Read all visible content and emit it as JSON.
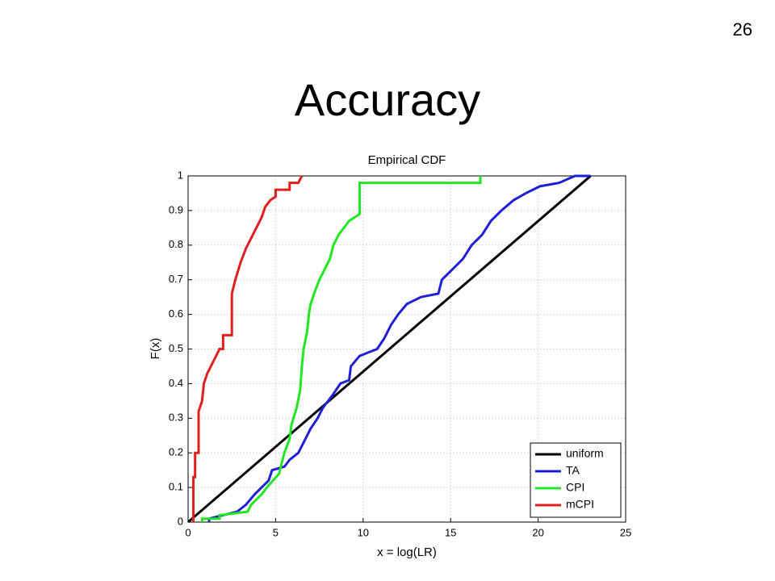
{
  "slide_number": "26",
  "slide_title": "Accuracy",
  "chart_data": {
    "type": "line",
    "title": "Empirical CDF",
    "x_label": "x = log(LR)",
    "y_label": "F(x)",
    "xlim": [
      0,
      25
    ],
    "ylim": [
      0,
      1
    ],
    "xticks": [
      0,
      5,
      10,
      15,
      20,
      25
    ],
    "yticks": [
      0,
      0.1,
      0.2,
      0.3,
      0.4,
      0.5,
      0.6,
      0.7,
      0.8,
      0.9,
      1
    ],
    "grid": true,
    "legend": "lower right",
    "series": [
      {
        "name": "uniform",
        "color": "#000000",
        "x": [
          0,
          23
        ],
        "values": [
          0,
          1
        ]
      },
      {
        "name": "TA",
        "color": "#1f1fd6",
        "x": [
          1.2,
          1.2,
          2.0,
          2.8,
          3.3,
          3.8,
          4.2,
          4.6,
          4.8,
          5.5,
          5.8,
          6.3,
          6.6,
          7.0,
          7.4,
          7.7,
          8.0,
          8.3,
          8.7,
          9.2,
          9.3,
          9.8,
          10.3,
          10.8,
          11.2,
          11.6,
          12.0,
          12.5,
          13.3,
          14.3,
          14.5,
          15.1,
          15.7,
          16.2,
          16.8,
          17.3,
          17.9,
          18.6,
          19.3,
          20.1,
          21.2,
          22.1,
          23
        ],
        "values": [
          0,
          0.01,
          0.02,
          0.03,
          0.05,
          0.08,
          0.1,
          0.12,
          0.15,
          0.16,
          0.18,
          0.2,
          0.23,
          0.27,
          0.3,
          0.33,
          0.35,
          0.37,
          0.4,
          0.41,
          0.45,
          0.48,
          0.49,
          0.5,
          0.53,
          0.57,
          0.6,
          0.63,
          0.65,
          0.66,
          0.7,
          0.73,
          0.76,
          0.8,
          0.83,
          0.87,
          0.9,
          0.93,
          0.95,
          0.97,
          0.98,
          1,
          1
        ]
      },
      {
        "name": "CPI",
        "color": "#22e622",
        "x": [
          0.8,
          0.8,
          1.8,
          1.8,
          3.4,
          3.6,
          4.2,
          4.5,
          5.2,
          5.5,
          5.8,
          5.9,
          6.2,
          6.4,
          6.5,
          6.6,
          6.8,
          6.9,
          7.0,
          7.2,
          7.5,
          7.8,
          8.1,
          8.3,
          8.6,
          8.9,
          9.2,
          9.8,
          9.8,
          16.7,
          16.7
        ],
        "values": [
          0,
          0.01,
          0.01,
          0.02,
          0.03,
          0.05,
          0.08,
          0.1,
          0.14,
          0.2,
          0.24,
          0.28,
          0.33,
          0.38,
          0.45,
          0.5,
          0.55,
          0.6,
          0.63,
          0.66,
          0.7,
          0.73,
          0.76,
          0.8,
          0.83,
          0.85,
          0.87,
          0.89,
          0.98,
          0.98,
          1
        ]
      },
      {
        "name": "mCPI",
        "color": "#e11f1f",
        "x": [
          0.3,
          0.3,
          0.4,
          0.4,
          0.6,
          0.6,
          0.8,
          0.9,
          1.1,
          1.3,
          1.5,
          1.8,
          2.0,
          2.0,
          2.5,
          2.5,
          2.7,
          3.0,
          3.3,
          3.6,
          3.9,
          4.2,
          4.4,
          4.7,
          5.0,
          5.0,
          5.8,
          5.8,
          6.3,
          6.5
        ],
        "values": [
          0,
          0.13,
          0.13,
          0.2,
          0.2,
          0.32,
          0.35,
          0.4,
          0.43,
          0.45,
          0.47,
          0.5,
          0.5,
          0.54,
          0.54,
          0.66,
          0.7,
          0.75,
          0.79,
          0.82,
          0.85,
          0.88,
          0.91,
          0.93,
          0.94,
          0.96,
          0.96,
          0.98,
          0.98,
          1
        ]
      }
    ]
  }
}
